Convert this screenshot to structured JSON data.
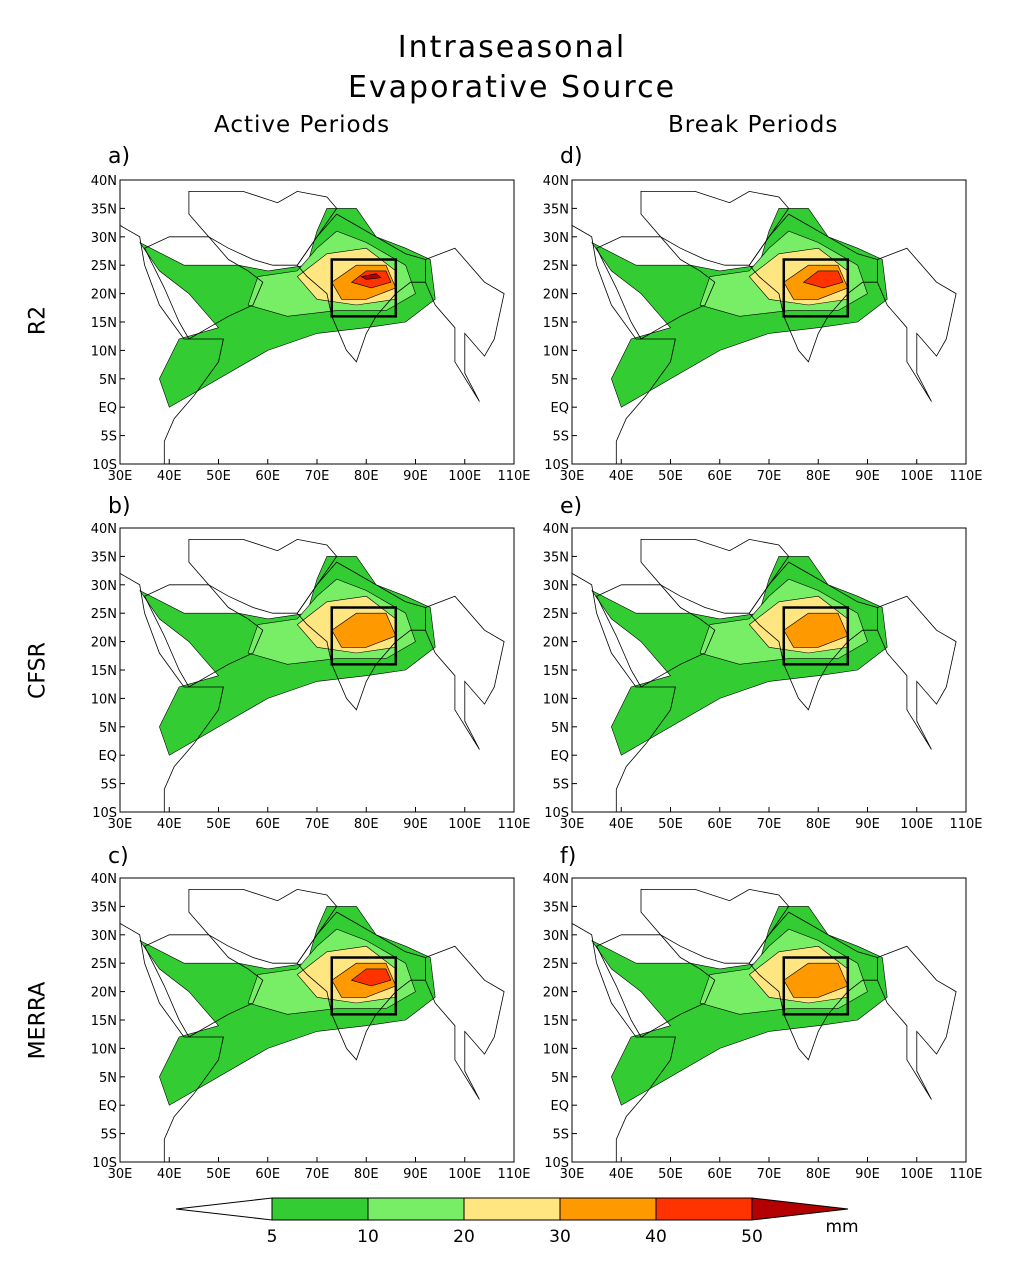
{
  "title_line1": "Intraseasonal",
  "title_line2": "Evaporative Source",
  "column_titles": [
    "Active Periods",
    "Break Periods"
  ],
  "row_labels": [
    "R2",
    "CFSR",
    "MERRA"
  ],
  "panel_labels": [
    "a)",
    "d)",
    "b)",
    "e)",
    "c)",
    "f)"
  ],
  "lat_ticks": [
    "40N",
    "35N",
    "30N",
    "25N",
    "20N",
    "15N",
    "10N",
    "5N",
    "EQ",
    "5S",
    "10S"
  ],
  "lon_ticks": [
    "30E",
    "40E",
    "50E",
    "60E",
    "70E",
    "80E",
    "90E",
    "100E",
    "110E"
  ],
  "colorbar": {
    "levels": [
      "5",
      "10",
      "20",
      "30",
      "40",
      "50"
    ],
    "unit": "mm",
    "colors": [
      "#ffffff",
      "#33cc33",
      "#77ee66",
      "#ffe680",
      "#ff9900",
      "#ff3300",
      "#b30000"
    ]
  },
  "colors": {
    "land_outline": "#000000",
    "box": "#000000"
  },
  "colors_fill": {
    "c1": "#33cc33",
    "c2": "#77ee66",
    "c3": "#ffe680",
    "c4": "#ff9900",
    "c5": "#ff3300",
    "c6": "#b30000"
  },
  "panels": [
    {
      "id": "a",
      "dataset": "R2",
      "period": "Active",
      "max_level": 6
    },
    {
      "id": "d",
      "dataset": "R2",
      "period": "Break",
      "max_level": 5
    },
    {
      "id": "b",
      "dataset": "CFSR",
      "period": "Active",
      "max_level": 4
    },
    {
      "id": "e",
      "dataset": "CFSR",
      "period": "Break",
      "max_level": 4
    },
    {
      "id": "c",
      "dataset": "MERRA",
      "period": "Active",
      "max_level": 5
    },
    {
      "id": "f",
      "dataset": "MERRA",
      "period": "Break",
      "max_level": 4
    }
  ]
}
